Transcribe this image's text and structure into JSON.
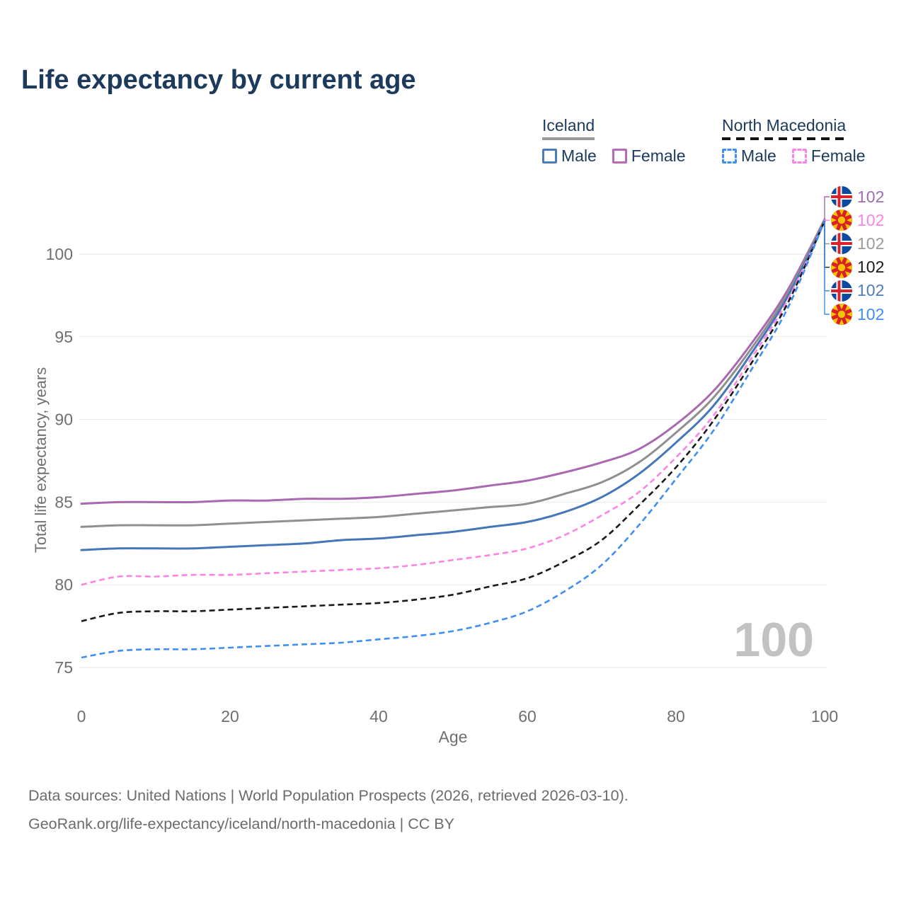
{
  "page": {
    "title": "Life expectancy by current age",
    "watermark_age": "100",
    "footer_line1": "Data sources: United Nations | World Population Prospects (2026, retrieved 2026-03-10).",
    "footer_line2": "GeoRank.org/life-expectancy/iceland/north-macedonia | CC BY"
  },
  "legend": {
    "groups": [
      {
        "label": "Iceland",
        "underline_style": "solid",
        "underline_color": "#999999",
        "items": [
          {
            "label": "Male",
            "color": "#4d7cbe",
            "dash": false
          },
          {
            "label": "Female",
            "color": "#b76ab8",
            "dash": false
          }
        ]
      },
      {
        "label": "North Macedonia",
        "underline_style": "dashed",
        "underline_color": "#141414",
        "items": [
          {
            "label": "Male",
            "color": "#3f8ef2",
            "dash": true
          },
          {
            "label": "Female",
            "color": "#fb84e4",
            "dash": true
          }
        ]
      }
    ]
  },
  "end_labels": [
    {
      "flag": "iceland",
      "value": "102",
      "color": "#a06cb0"
    },
    {
      "flag": "north-macedonia",
      "value": "102",
      "color": "#fb84e4"
    },
    {
      "flag": "iceland",
      "value": "102",
      "color": "#9a9a9a"
    },
    {
      "flag": "north-macedonia",
      "value": "102",
      "color": "#1a1a1a"
    },
    {
      "flag": "iceland",
      "value": "102",
      "color": "#4d7cbe"
    },
    {
      "flag": "north-macedonia",
      "value": "102",
      "color": "#3f8ef2"
    }
  ],
  "chart_data": {
    "type": "line",
    "title": "Life expectancy by current age",
    "xlabel": "Age",
    "ylabel": "Total life expectancy, years",
    "xlim": [
      0,
      100
    ],
    "ylim": [
      73.5,
      103
    ],
    "x_ticks": [
      0,
      20,
      40,
      60,
      80,
      100
    ],
    "y_ticks": [
      75,
      80,
      85,
      90,
      95,
      100
    ],
    "grid": "horizontal",
    "legend_position": "top-right",
    "x": [
      0,
      5,
      10,
      15,
      20,
      25,
      30,
      35,
      40,
      45,
      50,
      55,
      60,
      65,
      70,
      75,
      80,
      85,
      90,
      95,
      100
    ],
    "series": [
      {
        "name": "Iceland Female",
        "country": "Iceland",
        "sex": "Female",
        "color": "#a968b1",
        "dashed": false,
        "end_label_index": 0,
        "end_value_label": "102",
        "values": [
          84.9,
          85.0,
          85.0,
          85.0,
          85.1,
          85.1,
          85.2,
          85.2,
          85.3,
          85.5,
          85.7,
          86.0,
          86.3,
          86.8,
          87.4,
          88.2,
          89.7,
          91.7,
          94.5,
          97.8,
          102.1
        ]
      },
      {
        "name": "Iceland Both sexes",
        "country": "Iceland",
        "sex": "Both",
        "color": "#8f8f8f",
        "dashed": false,
        "end_label_index": 2,
        "end_value_label": "102",
        "values": [
          83.5,
          83.6,
          83.6,
          83.6,
          83.7,
          83.8,
          83.9,
          84.0,
          84.1,
          84.3,
          84.5,
          84.7,
          84.9,
          85.5,
          86.2,
          87.4,
          89.2,
          91.3,
          94.2,
          97.6,
          102.1
        ]
      },
      {
        "name": "Iceland Male",
        "country": "Iceland",
        "sex": "Male",
        "color": "#4577b8",
        "dashed": false,
        "end_label_index": 4,
        "end_value_label": "102",
        "values": [
          82.1,
          82.2,
          82.2,
          82.2,
          82.3,
          82.4,
          82.5,
          82.7,
          82.8,
          83.0,
          83.2,
          83.5,
          83.8,
          84.4,
          85.3,
          86.7,
          88.6,
          90.8,
          93.9,
          97.4,
          102.0
        ]
      },
      {
        "name": "North Macedonia Female",
        "country": "North Macedonia",
        "sex": "Female",
        "color": "#fb84e4",
        "dashed": true,
        "end_label_index": 1,
        "end_value_label": "102",
        "values": [
          80.0,
          80.5,
          80.5,
          80.6,
          80.6,
          80.7,
          80.8,
          80.9,
          81.0,
          81.2,
          81.5,
          81.8,
          82.2,
          83.0,
          84.2,
          85.6,
          87.7,
          90.2,
          93.6,
          97.2,
          102.0
        ]
      },
      {
        "name": "North Macedonia Both sexes",
        "country": "North Macedonia",
        "sex": "Both",
        "color": "#1a1a1a",
        "dashed": true,
        "end_label_index": 3,
        "end_value_label": "102",
        "values": [
          77.8,
          78.3,
          78.4,
          78.4,
          78.5,
          78.6,
          78.7,
          78.8,
          78.9,
          79.1,
          79.4,
          79.9,
          80.4,
          81.4,
          82.7,
          84.8,
          87.1,
          89.9,
          93.3,
          97.0,
          102.0
        ]
      },
      {
        "name": "North Macedonia Male",
        "country": "North Macedonia",
        "sex": "Male",
        "color": "#3f8ef2",
        "dashed": true,
        "end_label_index": 5,
        "end_value_label": "102",
        "values": [
          75.6,
          76.0,
          76.1,
          76.1,
          76.2,
          76.3,
          76.4,
          76.5,
          76.7,
          76.9,
          77.2,
          77.7,
          78.4,
          79.6,
          81.2,
          83.6,
          86.4,
          89.3,
          92.9,
          96.7,
          102.0
        ]
      }
    ]
  }
}
